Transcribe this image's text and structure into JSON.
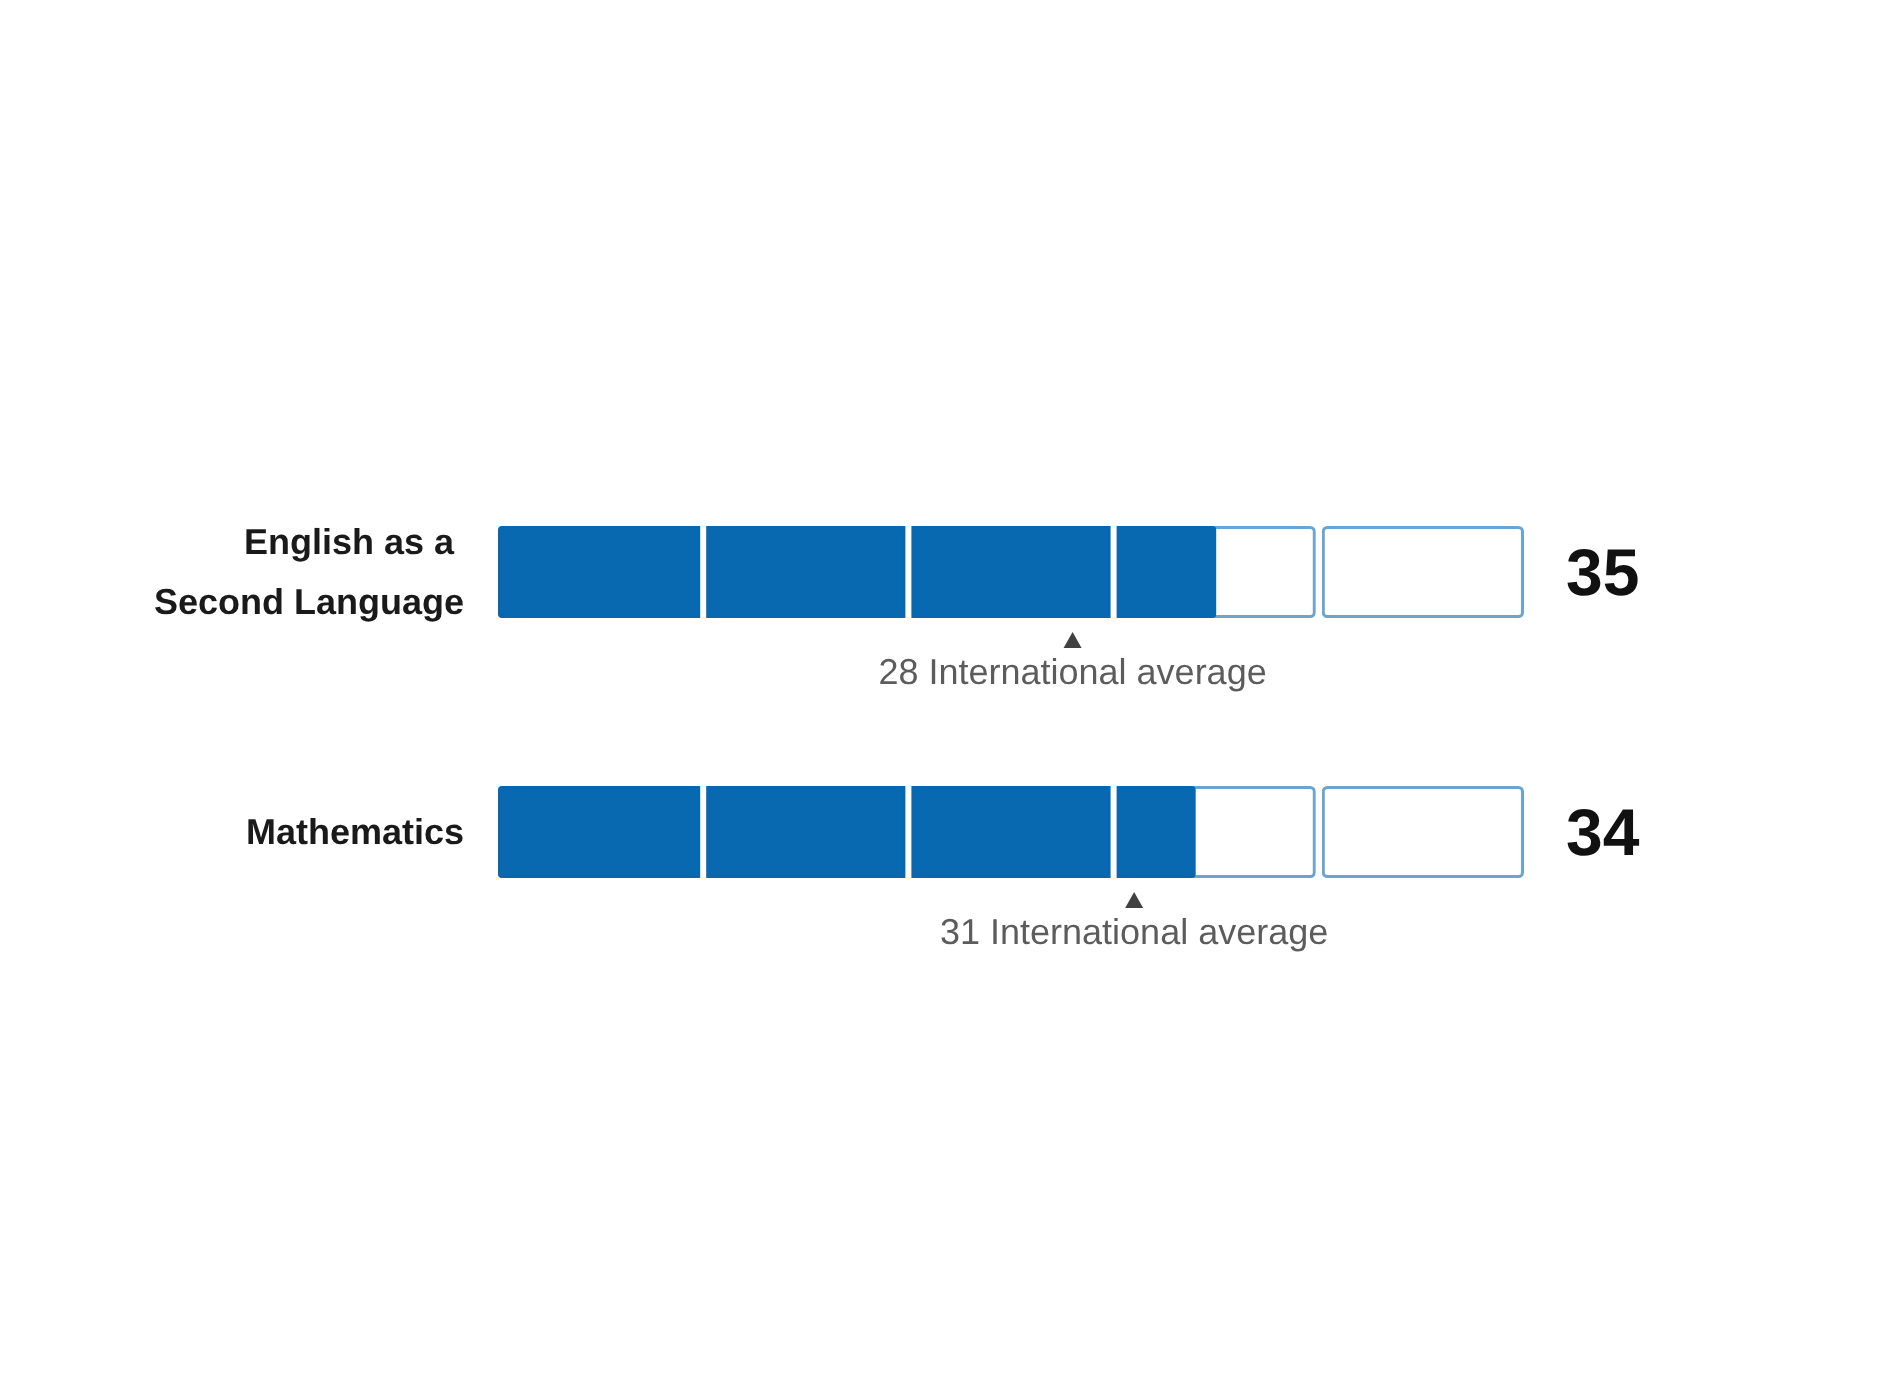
{
  "chart_data": {
    "type": "bar",
    "orientation": "horizontal",
    "categories": [
      "English as a Second Language",
      "Mathematics"
    ],
    "xlim": [
      0,
      50
    ],
    "tick_labels": "y",
    "series": [
      {
        "type": "bar",
        "color": "#0868b0",
        "values": [
          35,
          34
        ],
        "value_labels": [
          "35",
          "34"
        ]
      },
      {
        "type": "scatter",
        "color": "#111111",
        "marker": "triangle",
        "values": [
          28,
          31
        ],
        "value_labels": [
          "28 International average",
          "31 International average"
        ]
      }
    ]
  }
}
